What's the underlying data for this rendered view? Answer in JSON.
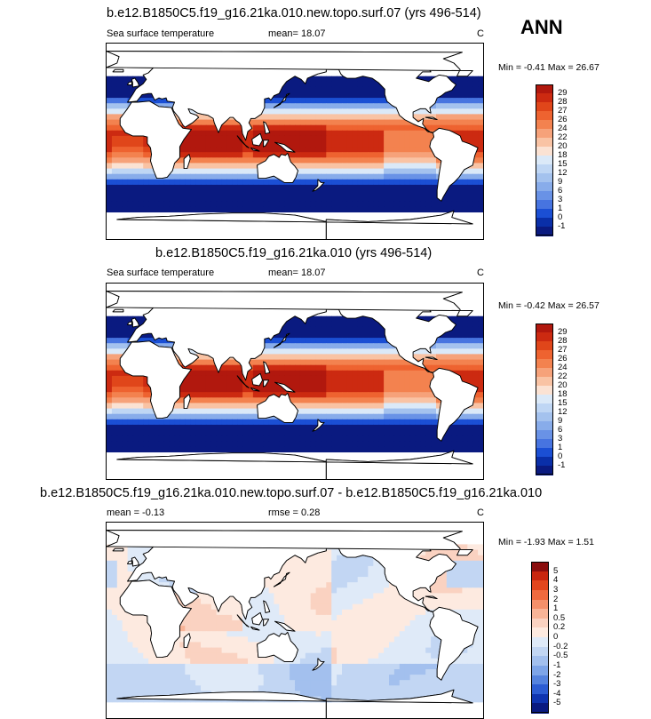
{
  "season": "ANN",
  "panels": [
    {
      "title": "b.e12.B1850C5.f19_g16.21ka.010.new.topo.surf.07 (yrs 496-514)",
      "left_label": "Sea surface temperature",
      "center_label": "mean=  18.07",
      "units": "C",
      "minmax": "Min =  -0.41 Max =  26.67",
      "levels": [
        "29",
        "28",
        "27",
        "26",
        "24",
        "22",
        "20",
        "18",
        "15",
        "12",
        "9",
        "6",
        "3",
        "1",
        "0",
        "-1"
      ],
      "colors": [
        "#b1180e",
        "#cc2a11",
        "#e0461a",
        "#ee6330",
        "#f3824f",
        "#f6a27a",
        "#f9c3a4",
        "#fbe2d3",
        "#dbe9f8",
        "#bfd6f4",
        "#a4c2ee",
        "#88acea",
        "#6992e6",
        "#4774e0",
        "#1b4fd4",
        "#0a2fa8",
        "#0a1a80"
      ],
      "field": "sst"
    },
    {
      "title": "b.e12.B1850C5.f19_g16.21ka.010 (yrs 496-514)",
      "left_label": "Sea surface temperature",
      "center_label": "mean=  18.07",
      "units": "C",
      "minmax": "Min =  -0.42 Max =  26.57",
      "levels": [
        "29",
        "28",
        "27",
        "26",
        "24",
        "22",
        "20",
        "18",
        "15",
        "12",
        "9",
        "6",
        "3",
        "1",
        "0",
        "-1"
      ],
      "colors": [
        "#b1180e",
        "#cc2a11",
        "#e0461a",
        "#ee6330",
        "#f3824f",
        "#f6a27a",
        "#f9c3a4",
        "#fbe2d3",
        "#dbe9f8",
        "#bfd6f4",
        "#a4c2ee",
        "#88acea",
        "#6992e6",
        "#4774e0",
        "#1b4fd4",
        "#0a2fa8",
        "#0a1a80"
      ],
      "field": "sst"
    },
    {
      "title": "b.e12.B1850C5.f19_g16.21ka.010.new.topo.surf.07 - b.e12.B1850C5.f19_g16.21ka.010",
      "left_label": "mean =  -0.13",
      "center_label": "rmse =   0.28",
      "units": "C",
      "minmax": "Min =  -1.93 Max =   1.51",
      "levels": [
        "5",
        "4",
        "3",
        "2",
        "1",
        "0.5",
        "0.2",
        "0",
        "-0.2",
        "-0.5",
        "-1",
        "-2",
        "-3",
        "-4",
        "-5"
      ],
      "colors": [
        "#8a0d0d",
        "#c8260f",
        "#e2461d",
        "#ef6a3e",
        "#f4906a",
        "#f8b497",
        "#fad2c1",
        "#fdeae0",
        "#dfeaf8",
        "#c2d6f3",
        "#a3c0ee",
        "#7ea5e8",
        "#5583de",
        "#2c5cd2",
        "#0f34b0",
        "#0a1a80"
      ],
      "field": "diff"
    }
  ]
}
